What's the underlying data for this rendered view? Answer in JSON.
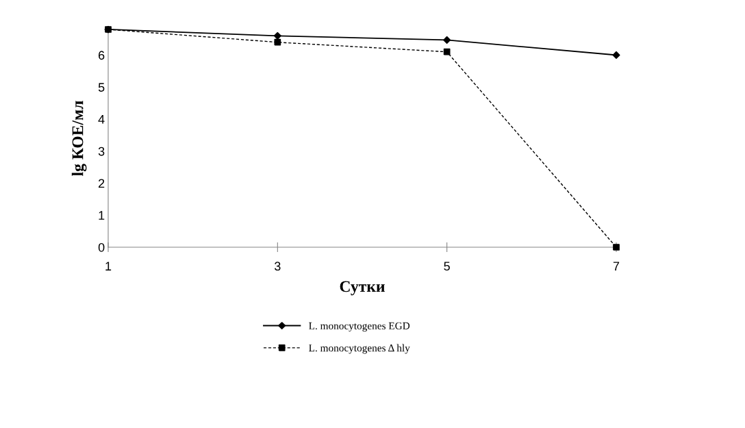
{
  "chart_data": {
    "type": "line",
    "xlabel": "Сутки",
    "ylabel": "lg КОЕ/мл",
    "x": [
      1,
      3,
      5,
      7
    ],
    "xlim": [
      1,
      7
    ],
    "xticks": [
      1,
      3,
      5,
      7
    ],
    "ylim": [
      0,
      6.8
    ],
    "yticks": [
      0,
      1,
      2,
      3,
      4,
      5,
      6
    ],
    "grid": false,
    "legend": "bottom",
    "series": [
      {
        "name": "L. monocytogenes EGD",
        "color": "#000000",
        "values": [
          6.8,
          6.6,
          6.47,
          6.0
        ],
        "marker": "diamond",
        "line_style": "solid"
      },
      {
        "name": "L. monocytogenes Δ hly",
        "color": "#000000",
        "values": [
          6.8,
          6.4,
          6.1,
          0
        ],
        "marker": "square",
        "line_style": "dashed"
      }
    ]
  }
}
